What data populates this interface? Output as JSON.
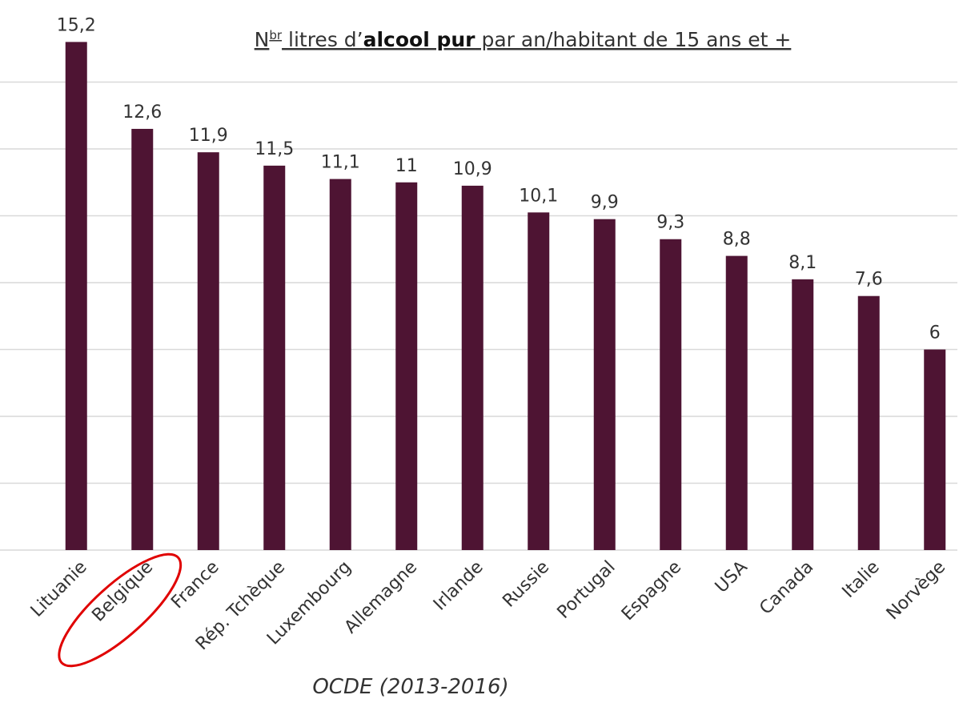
{
  "chart_data": {
    "type": "bar",
    "title_parts": [
      "N",
      "br",
      " litres d’",
      "alcool pur",
      " par an/habitant de 15 ans et +"
    ],
    "caption": "OCDE (2013-2016)",
    "categories": [
      "Lituanie",
      "Belgique",
      "France",
      "Rép. Tchèque",
      "Luxembourg",
      "Allemagne",
      "Irlande",
      "Russie",
      "Portugal",
      "Espagne",
      "USA",
      "Canada",
      "Italie",
      "Norvège"
    ],
    "values": [
      15.2,
      12.6,
      11.9,
      11.5,
      11.1,
      11,
      10.9,
      10.1,
      9.9,
      9.3,
      8.8,
      8.1,
      7.6,
      6
    ],
    "value_labels": [
      "15,2",
      "12,6",
      "11,9",
      "11,5",
      "11,1",
      "11",
      "10,9",
      "10,1",
      "9,9",
      "9,3",
      "8,8",
      "8,1",
      "7,6",
      "6"
    ],
    "color": "#4e1433",
    "highlight": 1,
    "ylim": [
      0,
      16
    ],
    "yticks": [
      0,
      2,
      4,
      6,
      8,
      10,
      12,
      14
    ],
    "grid": true
  }
}
